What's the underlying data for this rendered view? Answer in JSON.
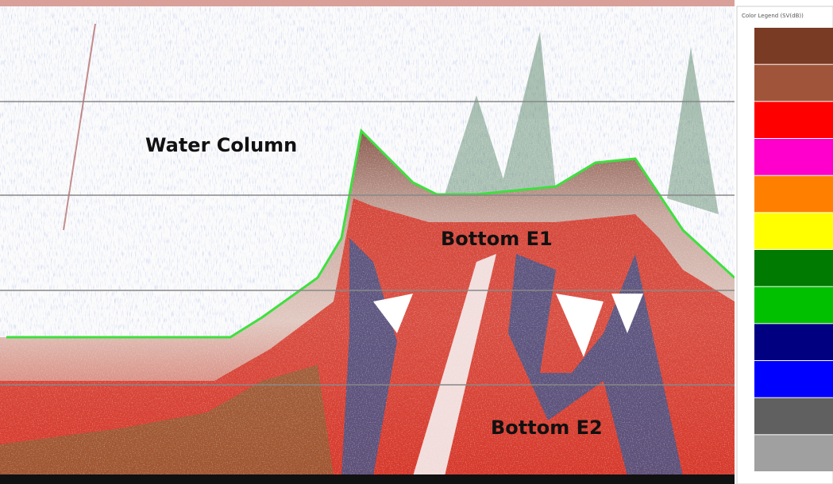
{
  "labels": {
    "water_column": "Water Column",
    "bottom_e1": "Bottom E1",
    "bottom_e2": "Bottom E2"
  },
  "legend": {
    "title": "Color Legend (SV(dB))",
    "colors": [
      "#7a3b25",
      "#a0553a",
      "#ff0000",
      "#ff00cc",
      "#ff8000",
      "#ffff00",
      "#007a00",
      "#00c000",
      "#000080",
      "#0000ff",
      "#606060",
      "#a0a0a0"
    ]
  }
}
